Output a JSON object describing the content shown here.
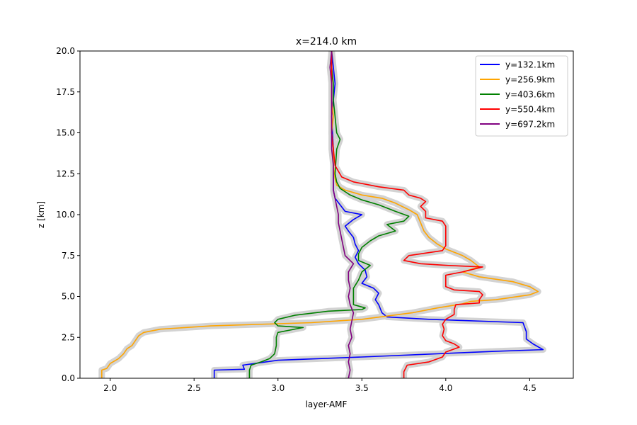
{
  "chart_data": {
    "type": "line",
    "title": "x=214.0 km",
    "xlabel": "layer-AMF",
    "ylabel": "z [km]",
    "xlim": [
      1.82,
      4.76
    ],
    "ylim": [
      0,
      20
    ],
    "xticks": [
      "2.0",
      "2.5",
      "3.0",
      "3.5",
      "4.0",
      "4.5"
    ],
    "xtick_values": [
      2.0,
      2.5,
      3.0,
      3.5,
      4.0,
      4.5
    ],
    "yticks": [
      "0.0",
      "2.5",
      "5.0",
      "7.5",
      "10.0",
      "12.5",
      "15.0",
      "17.5",
      "20.0"
    ],
    "ytick_values": [
      0,
      2.5,
      5,
      7.5,
      10,
      12.5,
      15,
      17.5,
      20
    ],
    "grid": false,
    "legend_position": "top-right",
    "uncertainty_band_color": "#d3d3d3",
    "series": [
      {
        "name": "y=132.1km",
        "color": "#0000ff",
        "points": [
          [
            2.62,
            0
          ],
          [
            2.62,
            0.5
          ],
          [
            2.8,
            0.55
          ],
          [
            2.79,
            0.8
          ],
          [
            2.86,
            0.9
          ],
          [
            3.0,
            1.1
          ],
          [
            3.5,
            1.3
          ],
          [
            4.3,
            1.65
          ],
          [
            4.58,
            1.75
          ],
          [
            4.52,
            2.1
          ],
          [
            4.48,
            2.4
          ],
          [
            4.48,
            2.85
          ],
          [
            4.46,
            3.4
          ],
          [
            3.9,
            3.6
          ],
          [
            3.65,
            3.75
          ],
          [
            3.62,
            4.0
          ],
          [
            3.6,
            4.5
          ],
          [
            3.58,
            4.8
          ],
          [
            3.6,
            5.2
          ],
          [
            3.57,
            5.5
          ],
          [
            3.5,
            5.8
          ],
          [
            3.53,
            6.2
          ],
          [
            3.52,
            6.6
          ],
          [
            3.48,
            7.0
          ],
          [
            3.46,
            7.4
          ],
          [
            3.48,
            7.8
          ],
          [
            3.46,
            8.2
          ],
          [
            3.45,
            8.6
          ],
          [
            3.42,
            9.0
          ],
          [
            3.4,
            9.3
          ],
          [
            3.45,
            9.7
          ],
          [
            3.5,
            10.0
          ],
          [
            3.4,
            10.2
          ],
          [
            3.37,
            10.6
          ],
          [
            3.34,
            11.0
          ],
          [
            3.33,
            11.5
          ],
          [
            3.33,
            12.5
          ],
          [
            3.33,
            14.0
          ],
          [
            3.32,
            16.0
          ],
          [
            3.33,
            17.0
          ],
          [
            3.34,
            18.0
          ],
          [
            3.33,
            19.0
          ],
          [
            3.32,
            20.0
          ]
        ]
      },
      {
        "name": "y=256.9km",
        "color": "#ffa500",
        "points": [
          [
            1.95,
            0
          ],
          [
            1.95,
            0.5
          ],
          [
            1.98,
            0.6
          ],
          [
            2.0,
            0.9
          ],
          [
            2.05,
            1.2
          ],
          [
            2.08,
            1.5
          ],
          [
            2.1,
            1.8
          ],
          [
            2.13,
            2.0
          ],
          [
            2.15,
            2.3
          ],
          [
            2.17,
            2.6
          ],
          [
            2.2,
            2.8
          ],
          [
            2.3,
            3.0
          ],
          [
            2.6,
            3.2
          ],
          [
            3.2,
            3.4
          ],
          [
            3.5,
            3.6
          ],
          [
            3.65,
            3.8
          ],
          [
            3.8,
            4.0
          ],
          [
            3.95,
            4.3
          ],
          [
            4.1,
            4.55
          ],
          [
            4.15,
            4.7
          ],
          [
            4.3,
            4.8
          ],
          [
            4.5,
            5.1
          ],
          [
            4.55,
            5.3
          ],
          [
            4.5,
            5.6
          ],
          [
            4.4,
            5.9
          ],
          [
            4.2,
            6.2
          ],
          [
            4.1,
            6.5
          ],
          [
            4.2,
            6.8
          ],
          [
            4.15,
            7.2
          ],
          [
            4.1,
            7.5
          ],
          [
            4.0,
            7.9
          ],
          [
            3.95,
            8.2
          ],
          [
            3.9,
            8.6
          ],
          [
            3.87,
            9.0
          ],
          [
            3.85,
            9.5
          ],
          [
            3.83,
            10.0
          ],
          [
            3.78,
            10.3
          ],
          [
            3.7,
            10.7
          ],
          [
            3.62,
            11.0
          ],
          [
            3.5,
            11.2
          ],
          [
            3.4,
            11.5
          ],
          [
            3.35,
            11.8
          ],
          [
            3.34,
            12.2
          ],
          [
            3.33,
            13.0
          ],
          [
            3.33,
            14.0
          ],
          [
            3.32,
            15.0
          ],
          [
            3.33,
            16.0
          ],
          [
            3.32,
            17.0
          ],
          [
            3.32,
            18.0
          ],
          [
            3.32,
            19.0
          ],
          [
            3.32,
            20.0
          ]
        ]
      },
      {
        "name": "y=403.6km",
        "color": "#008000",
        "points": [
          [
            2.83,
            0
          ],
          [
            2.83,
            0.5
          ],
          [
            2.84,
            0.8
          ],
          [
            2.9,
            1.0
          ],
          [
            2.95,
            1.2
          ],
          [
            2.98,
            1.5
          ],
          [
            2.99,
            2.0
          ],
          [
            2.99,
            2.5
          ],
          [
            3.0,
            2.8
          ],
          [
            3.15,
            3.1
          ],
          [
            3.0,
            3.2
          ],
          [
            2.98,
            3.4
          ],
          [
            3.0,
            3.6
          ],
          [
            3.1,
            3.85
          ],
          [
            3.3,
            4.1
          ],
          [
            3.5,
            4.2
          ],
          [
            3.52,
            4.3
          ],
          [
            3.45,
            4.5
          ],
          [
            3.45,
            5.0
          ],
          [
            3.45,
            5.5
          ],
          [
            3.48,
            6.0
          ],
          [
            3.5,
            6.5
          ],
          [
            3.55,
            6.9
          ],
          [
            3.48,
            7.2
          ],
          [
            3.48,
            7.6
          ],
          [
            3.5,
            8.0
          ],
          [
            3.55,
            8.4
          ],
          [
            3.6,
            8.7
          ],
          [
            3.7,
            9.0
          ],
          [
            3.65,
            9.4
          ],
          [
            3.75,
            9.6
          ],
          [
            3.78,
            9.9
          ],
          [
            3.7,
            10.2
          ],
          [
            3.6,
            10.6
          ],
          [
            3.5,
            10.9
          ],
          [
            3.43,
            11.2
          ],
          [
            3.37,
            11.6
          ],
          [
            3.35,
            12.0
          ],
          [
            3.34,
            12.5
          ],
          [
            3.35,
            14.0
          ],
          [
            3.37,
            14.6
          ],
          [
            3.35,
            15.0
          ],
          [
            3.34,
            16.0
          ],
          [
            3.33,
            17.0
          ],
          [
            3.33,
            18.0
          ],
          [
            3.32,
            19.0
          ],
          [
            3.32,
            20.0
          ]
        ]
      },
      {
        "name": "y=550.4km",
        "color": "#ff0000",
        "points": [
          [
            3.75,
            0
          ],
          [
            3.75,
            0.4
          ],
          [
            3.77,
            0.8
          ],
          [
            3.9,
            1.0
          ],
          [
            3.98,
            1.3
          ],
          [
            4.0,
            1.6
          ],
          [
            4.08,
            1.9
          ],
          [
            4.05,
            2.1
          ],
          [
            4.0,
            2.3
          ],
          [
            3.98,
            2.6
          ],
          [
            3.99,
            3.0
          ],
          [
            3.98,
            3.3
          ],
          [
            4.0,
            3.6
          ],
          [
            4.05,
            3.9
          ],
          [
            4.05,
            4.2
          ],
          [
            4.06,
            4.5
          ],
          [
            4.2,
            4.6
          ],
          [
            4.2,
            4.8
          ],
          [
            4.22,
            5.1
          ],
          [
            4.2,
            5.3
          ],
          [
            4.05,
            5.4
          ],
          [
            4.0,
            5.6
          ],
          [
            4.0,
            6.0
          ],
          [
            4.0,
            6.3
          ],
          [
            4.1,
            6.5
          ],
          [
            4.22,
            6.8
          ],
          [
            4.0,
            6.9
          ],
          [
            3.85,
            7.0
          ],
          [
            3.75,
            7.2
          ],
          [
            3.78,
            7.5
          ],
          [
            3.98,
            7.8
          ],
          [
            4.0,
            8.1
          ],
          [
            4.0,
            8.5
          ],
          [
            4.0,
            8.9
          ],
          [
            4.0,
            9.3
          ],
          [
            3.98,
            9.6
          ],
          [
            3.88,
            9.8
          ],
          [
            3.88,
            10.2
          ],
          [
            3.85,
            10.5
          ],
          [
            3.88,
            10.8
          ],
          [
            3.85,
            11.0
          ],
          [
            3.78,
            11.2
          ],
          [
            3.75,
            11.5
          ],
          [
            3.6,
            11.7
          ],
          [
            3.45,
            12.0
          ],
          [
            3.38,
            12.3
          ],
          [
            3.34,
            13.0
          ],
          [
            3.33,
            14.0
          ],
          [
            3.32,
            15.0
          ],
          [
            3.32,
            16.0
          ],
          [
            3.32,
            17.0
          ],
          [
            3.32,
            18.0
          ],
          [
            3.32,
            19.0
          ],
          [
            3.32,
            20.0
          ]
        ]
      },
      {
        "name": "y=697.2km",
        "color": "#800080",
        "points": [
          [
            3.42,
            0
          ],
          [
            3.43,
            0.5
          ],
          [
            3.42,
            1.0
          ],
          [
            3.43,
            1.5
          ],
          [
            3.42,
            2.0
          ],
          [
            3.44,
            2.5
          ],
          [
            3.43,
            3.0
          ],
          [
            3.44,
            3.5
          ],
          [
            3.45,
            4.0
          ],
          [
            3.43,
            4.5
          ],
          [
            3.42,
            5.0
          ],
          [
            3.43,
            5.5
          ],
          [
            3.42,
            6.0
          ],
          [
            3.42,
            6.5
          ],
          [
            3.45,
            7.0
          ],
          [
            3.43,
            7.2
          ],
          [
            3.4,
            7.5
          ],
          [
            3.39,
            8.0
          ],
          [
            3.38,
            8.5
          ],
          [
            3.37,
            9.0
          ],
          [
            3.36,
            9.5
          ],
          [
            3.36,
            10.0
          ],
          [
            3.35,
            10.5
          ],
          [
            3.34,
            11.0
          ],
          [
            3.33,
            11.5
          ],
          [
            3.33,
            12.0
          ],
          [
            3.33,
            13.0
          ],
          [
            3.32,
            14.0
          ],
          [
            3.32,
            15.0
          ],
          [
            3.32,
            16.0
          ],
          [
            3.32,
            17.0
          ],
          [
            3.32,
            18.0
          ],
          [
            3.31,
            19.0
          ],
          [
            3.32,
            20.0
          ]
        ]
      }
    ]
  }
}
